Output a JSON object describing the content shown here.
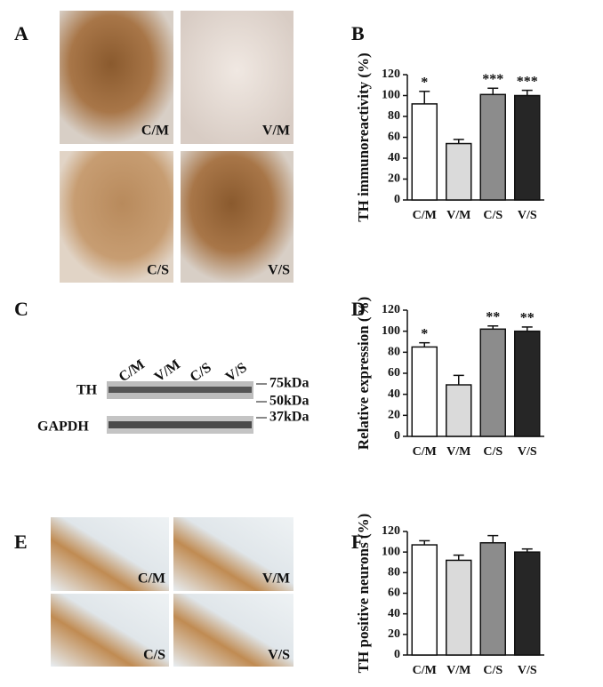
{
  "panels": {
    "A": {
      "label": "A",
      "images": [
        "C/M",
        "V/M",
        "C/S",
        "V/S"
      ]
    },
    "C": {
      "label": "C",
      "lanes": [
        "C/M",
        "V/M",
        "C/S",
        "V/S"
      ],
      "bands": [
        "TH",
        "GAPDH"
      ],
      "markers": [
        "75kDa",
        "50kDa",
        "37kDa"
      ]
    },
    "E": {
      "label": "E",
      "images": [
        "C/M",
        "V/M",
        "C/S",
        "V/S"
      ]
    }
  },
  "chart_data": [
    {
      "type": "bar",
      "panel_label": "B",
      "y_label": "TH immunoreactivity (%)",
      "categories": [
        "C/M",
        "V/M",
        "C/S",
        "V/S"
      ],
      "values": [
        92,
        54,
        101,
        100
      ],
      "errors": [
        12,
        4,
        6,
        5
      ],
      "annotations": [
        "*",
        null,
        "***",
        "***"
      ],
      "colors": [
        "#ffffff",
        "#dadada",
        "#8c8c8c",
        "#262626"
      ],
      "ylim": [
        0,
        120
      ],
      "yticks": [
        0,
        20,
        40,
        60,
        80,
        100,
        120
      ]
    },
    {
      "type": "bar",
      "panel_label": "D",
      "y_label": "Relative expression (%)",
      "categories": [
        "C/M",
        "V/M",
        "C/S",
        "V/S"
      ],
      "values": [
        85,
        49,
        102,
        100
      ],
      "errors": [
        4,
        9,
        3,
        4
      ],
      "annotations": [
        "*",
        null,
        "**",
        "**"
      ],
      "colors": [
        "#ffffff",
        "#dadada",
        "#8c8c8c",
        "#262626"
      ],
      "ylim": [
        0,
        120
      ],
      "yticks": [
        0,
        20,
        40,
        60,
        80,
        100,
        120
      ]
    },
    {
      "type": "bar",
      "panel_label": "F",
      "y_label": "TH positive neurons (%)",
      "categories": [
        "C/M",
        "V/M",
        "C/S",
        "V/S"
      ],
      "values": [
        107,
        92,
        109,
        100
      ],
      "errors": [
        4,
        5,
        7,
        3
      ],
      "colors": [
        "#ffffff",
        "#dadada",
        "#8c8c8c",
        "#262626"
      ],
      "ylim": [
        0,
        120
      ],
      "yticks": [
        0,
        20,
        40,
        60,
        80,
        100,
        120
      ]
    }
  ]
}
